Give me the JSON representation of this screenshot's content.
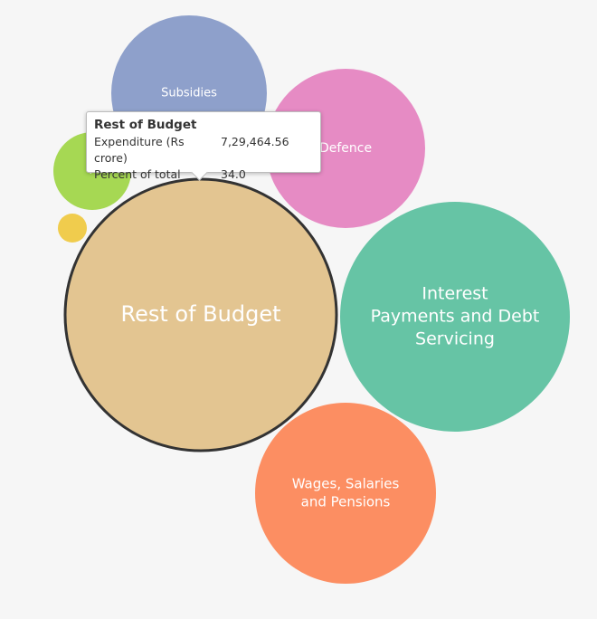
{
  "chart_data": {
    "type": "bubble",
    "series": [
      {
        "name": "Rest of Budget",
        "label_lines": [
          "Rest of Budget"
        ],
        "color": "#e3c591",
        "highlighted": true
      },
      {
        "name": "Interest Payments and Debt Servicing",
        "label_lines": [
          "Interest",
          "Payments and Debt",
          "Servicing"
        ],
        "color": "#66c4a5"
      },
      {
        "name": "Wages, Salaries and Pensions",
        "label_lines": [
          "Wages, Salaries",
          "and Pensions"
        ],
        "color": "#fc8e62"
      },
      {
        "name": "Defence",
        "label_lines": [
          "Defence"
        ],
        "color": "#e68bc4"
      },
      {
        "name": "Subsidies",
        "label_lines": [
          "Subsidies"
        ],
        "color": "#8ea0cb"
      },
      {
        "name": "P",
        "label_lines": [
          "P"
        ],
        "color": "#a6d853"
      },
      {
        "name": "",
        "label_lines": [],
        "color": "#f0cc4d"
      }
    ],
    "tooltip": {
      "title": "Rest of Budget",
      "rows": [
        {
          "label": "Expenditure (Rs crore)",
          "value": "7,29,464.56"
        },
        {
          "label": "Percent of total",
          "value": "34.0"
        }
      ]
    }
  }
}
